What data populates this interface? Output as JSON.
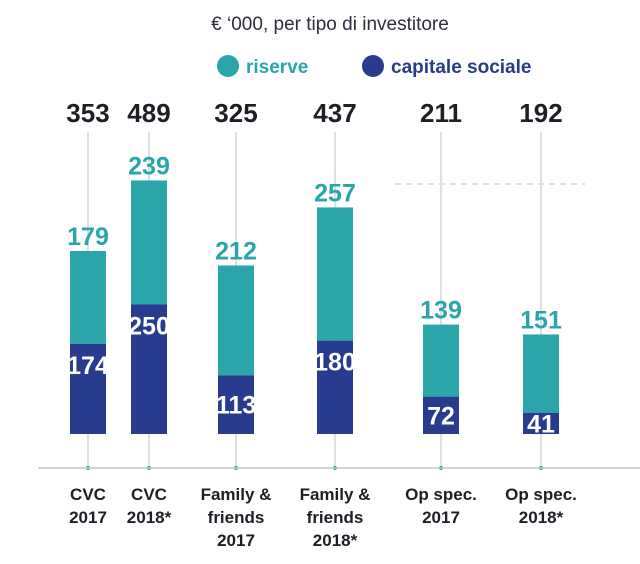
{
  "chart_data": {
    "type": "bar",
    "stacked": true,
    "title": "€ ‘000, per tipo di investitore",
    "legend": [
      {
        "name": "riserve",
        "color": "#2aa6ab"
      },
      {
        "name": "capitale sociale",
        "color": "#283b8f"
      }
    ],
    "legend_position": "top-center",
    "categories": [
      [
        "CVC",
        "2017"
      ],
      [
        "CVC",
        "2018*"
      ],
      [
        "Family &",
        "friends",
        "2017"
      ],
      [
        "Family &",
        "friends",
        "2018*"
      ],
      [
        "Op spec.",
        "2017"
      ],
      [
        "Op spec.",
        "2018*"
      ]
    ],
    "series": [
      {
        "name": "capitale sociale",
        "values": [
          174,
          250,
          113,
          180,
          72,
          41
        ]
      },
      {
        "name": "riserve",
        "values": [
          179,
          239,
          212,
          257,
          139,
          151
        ]
      }
    ],
    "totals": [
      "353",
      "489",
      "325",
      "437",
      "211",
      "192"
    ],
    "ylim": [
      0,
      500
    ],
    "grid": false
  },
  "colors": {
    "riserve": "#2aa6ab",
    "capitale_sociale": "#283b8f",
    "guide": "#dcdfe3",
    "axis": "#c4c8cc"
  }
}
